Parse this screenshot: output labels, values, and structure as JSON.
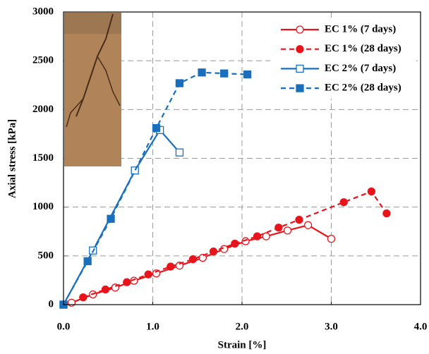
{
  "chart_data": {
    "type": "line",
    "x_label": "Strain [%]",
    "y_label": "Axial stress [kPa]",
    "xlim": [
      0,
      4
    ],
    "ylim": [
      0,
      3000
    ],
    "xticks": [
      {
        "value": 0,
        "label": "0.0"
      },
      {
        "value": 1,
        "label": "1.0"
      },
      {
        "value": 2,
        "label": "2.0"
      },
      {
        "value": 3,
        "label": "3.0"
      },
      {
        "value": 4,
        "label": "4.0"
      }
    ],
    "yticks": [
      0,
      500,
      1000,
      1500,
      2000,
      2500,
      3000
    ],
    "grid": true,
    "legend": "upper right",
    "series": [
      {
        "name": "EC 1% (7 days)",
        "color": "#e8141b",
        "marker": "circle",
        "filled": false,
        "dashed": false,
        "x": [
          0.09,
          0.33,
          0.58,
          0.79,
          1.04,
          1.3,
          1.56,
          1.8,
          2.04,
          2.27,
          2.51,
          2.74,
          3.0
        ],
        "values": [
          20,
          105,
          175,
          245,
          320,
          400,
          480,
          570,
          650,
          700,
          760,
          815,
          675
        ]
      },
      {
        "name": "EC 1% (28 days)",
        "color": "#e8141b",
        "marker": "circle",
        "filled": true,
        "dashed": true,
        "x": [
          0.22,
          0.47,
          0.71,
          0.95,
          1.2,
          1.45,
          1.68,
          1.92,
          2.17,
          2.41,
          2.64,
          3.14,
          3.45,
          3.62
        ],
        "values": [
          75,
          155,
          230,
          310,
          390,
          465,
          545,
          625,
          700,
          790,
          870,
          1050,
          1160,
          935
        ]
      },
      {
        "name": "EC 2% (7 days)",
        "color": "#1a6fbd",
        "marker": "square",
        "filled": false,
        "dashed": false,
        "x": [
          0,
          0.33,
          0.8,
          1.08,
          1.3
        ],
        "values": [
          0,
          555,
          1375,
          1790,
          1560
        ]
      },
      {
        "name": "EC 2% (28 days)",
        "color": "#1a6fbd",
        "marker": "square",
        "filled": true,
        "dashed": true,
        "x": [
          0,
          0.27,
          0.53,
          1.04,
          1.3,
          1.55,
          1.8,
          2.06
        ],
        "values": [
          0,
          445,
          880,
          1810,
          2270,
          2380,
          2370,
          2360
        ]
      }
    ]
  }
}
